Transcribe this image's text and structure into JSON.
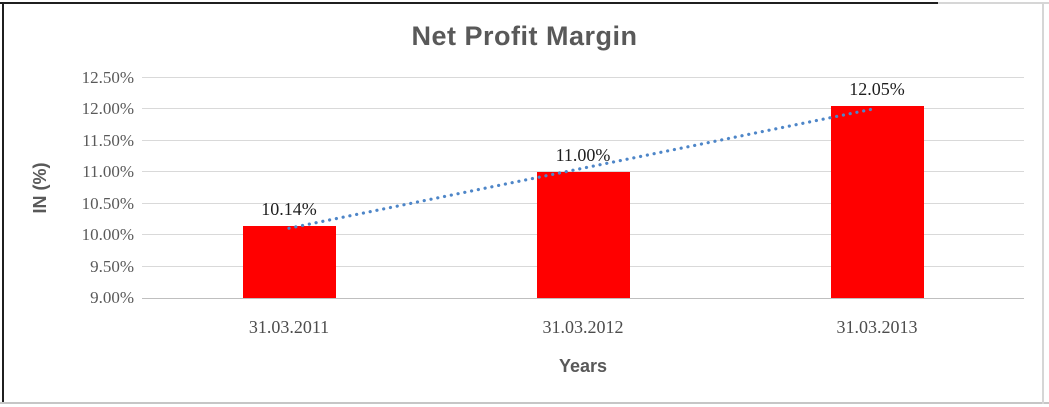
{
  "chart_data": {
    "type": "bar",
    "title": "Net Profit Margin",
    "xlabel": "Years",
    "ylabel": "IN (%)",
    "categories": [
      "31.03.2011",
      "31.03.2012",
      "31.03.2013"
    ],
    "values": [
      10.14,
      11.0,
      12.05
    ],
    "data_labels": [
      "10.14%",
      "11.00%",
      "12.05%"
    ],
    "ylim": [
      9.0,
      12.5
    ],
    "ytick_step": 0.5,
    "yticks": [
      {
        "value": 12.5,
        "label": "12.50%"
      },
      {
        "value": 12.0,
        "label": "12.00%"
      },
      {
        "value": 11.5,
        "label": "11.50%"
      },
      {
        "value": 11.0,
        "label": "11.00%"
      },
      {
        "value": 10.5,
        "label": "10.50%"
      },
      {
        "value": 10.0,
        "label": "10.00%"
      },
      {
        "value": 9.5,
        "label": "9.50%"
      },
      {
        "value": 9.0,
        "label": "9.00%"
      }
    ],
    "grid": true,
    "legend_position": "none",
    "bar_color": "#FF0000",
    "gridline_color": "#D9D9D9",
    "axis_line_color": "#BFBFBF",
    "title_color": "#595959",
    "trendline": {
      "type": "linear",
      "style": "dotted",
      "color": "#4E86C8",
      "start_value": 10.11,
      "end_value": 12.02
    }
  }
}
